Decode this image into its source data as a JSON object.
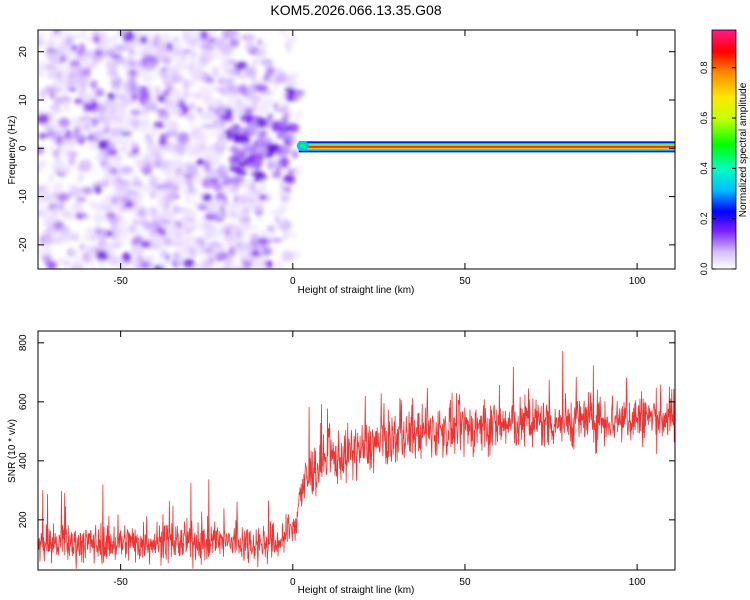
{
  "title": "KOM5.2026.066.13.35.G08",
  "chart_data": [
    {
      "type": "heatmap",
      "xlabel": "Height of straight line (km)",
      "ylabel": "Frequency (Hz)",
      "xlim": [
        -74,
        111
      ],
      "ylim": [
        -25,
        24.5
      ],
      "xticks": [
        -50,
        0,
        50,
        100
      ],
      "yticks": [
        -20,
        -10,
        0,
        10,
        20
      ],
      "colorbar": {
        "label": "Normalized spectral amplitude",
        "range": [
          0,
          0.95
        ],
        "ticks": [
          0.0,
          0.2,
          0.4,
          0.6,
          0.8
        ]
      },
      "signal_band": {
        "x_start": 0,
        "x_end": 111,
        "frequency": 0.3,
        "amplitude": 0.9
      },
      "noise_region": {
        "x_start": -74,
        "x_end": 2,
        "amplitude_range": [
          0.0,
          0.3
        ]
      },
      "grid": false
    },
    {
      "type": "line",
      "xlabel": "Height of straight line (km)",
      "ylabel": "SNR (10 * v/v)",
      "xlim": [
        -74,
        111
      ],
      "ylim": [
        30,
        840
      ],
      "xticks": [
        -50,
        0,
        50,
        100
      ],
      "yticks": [
        200,
        400,
        600,
        800
      ],
      "color": "#ee3333",
      "trend": {
        "x": [
          -74,
          -60,
          -40,
          -20,
          -5,
          0,
          2,
          5,
          10,
          20,
          30,
          40,
          50,
          60,
          70,
          80,
          90,
          100,
          111
        ],
        "y": [
          120,
          120,
          125,
          125,
          120,
          160,
          280,
          360,
          400,
          440,
          480,
          500,
          510,
          520,
          530,
          535,
          540,
          545,
          550
        ]
      },
      "noise_amplitude": 55,
      "grid": false
    }
  ]
}
